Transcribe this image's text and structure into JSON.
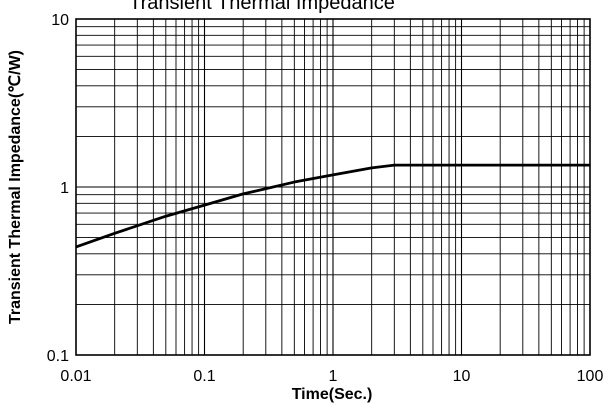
{
  "chart_data": {
    "type": "line",
    "title": "Transient Thermal Impedance",
    "xlabel": "Time(Sec.)",
    "ylabel": "Transient Thermal Impedance(℃/W)",
    "x_scale": "log",
    "y_scale": "log",
    "xlim": [
      0.01,
      100
    ],
    "ylim": [
      0.1,
      10
    ],
    "x_ticks": [
      "0.01",
      "0.1",
      "1",
      "10",
      "100"
    ],
    "y_ticks": [
      "0.1",
      "1",
      "10"
    ],
    "grid": true,
    "series": [
      {
        "x": [
          0.01,
          0.02,
          0.05,
          0.1,
          0.2,
          0.5,
          1,
          2,
          3,
          5,
          10,
          20,
          50,
          100
        ],
        "y": [
          0.44,
          0.53,
          0.67,
          0.78,
          0.91,
          1.07,
          1.18,
          1.3,
          1.35,
          1.35,
          1.35,
          1.35,
          1.35,
          1.35
        ]
      }
    ]
  }
}
